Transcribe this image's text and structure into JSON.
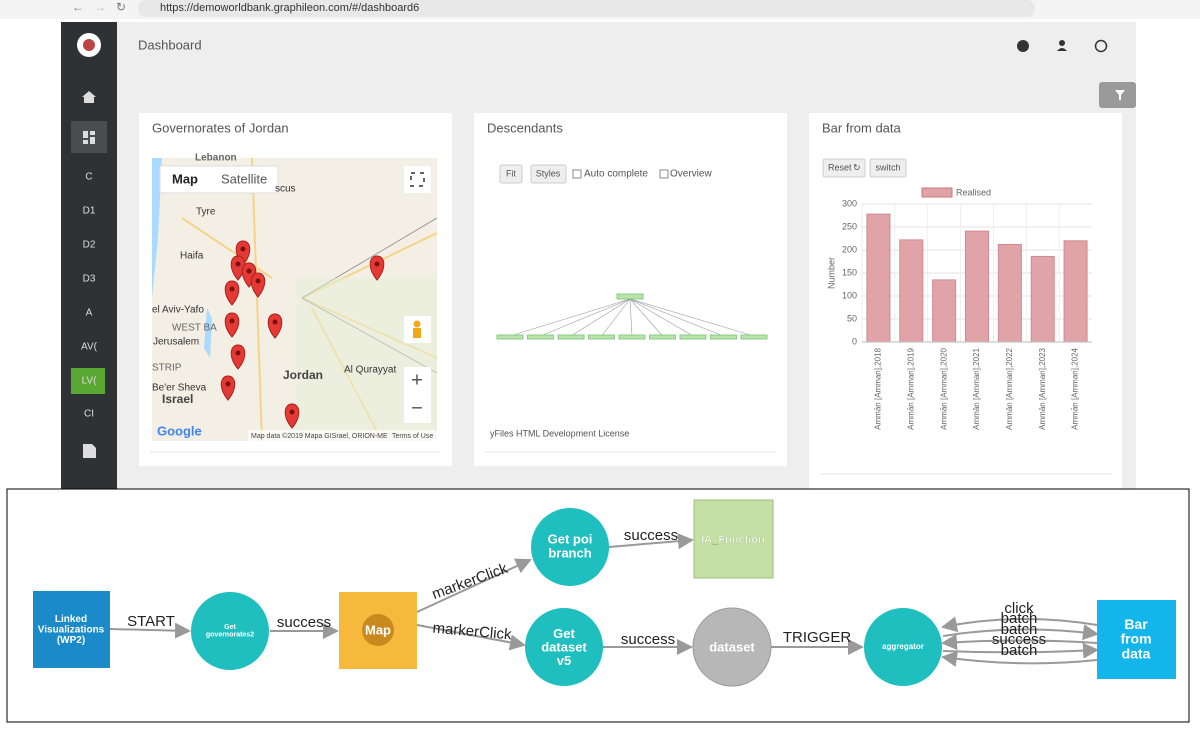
{
  "browser": {
    "url": "https://demoworldbank.graphileon.com/#/dashboard6"
  },
  "sidebar": {
    "items": [
      "C",
      "D1",
      "D2",
      "D3",
      "A",
      "AV(",
      "LV(",
      "CI"
    ]
  },
  "header": {
    "title": "Dashboard"
  },
  "map_panel": {
    "title": "Governorates of Jordan",
    "buttons": [
      "Map",
      "Satellite"
    ],
    "places": [
      "Tyre",
      "Haifa",
      "el Aviv-Yafo",
      "WEST BA",
      "Jerusalem",
      "STRIP",
      "Be'er Sheva",
      "Israel",
      "Jordan",
      "Al Qurayyat",
      "Lebanon",
      "scus"
    ],
    "logo": "Google",
    "attribution": "Map data ©2019 Mapa GISrael, ORION-ME",
    "terms": "Terms of Use"
  },
  "tree_panel": {
    "title": "Descendants",
    "buttons": [
      "Fit",
      "Styles"
    ],
    "checkboxes": [
      "Auto complete",
      "Overview"
    ],
    "license": "yFiles HTML Development License"
  },
  "bar_panel": {
    "title": "Bar from data",
    "buttons": [
      "Reset",
      "switch"
    ],
    "chart": {
      "type": "bar",
      "series_name": "Realised",
      "color": "#e0a3a8",
      "y_label": "Number",
      "categories": [
        "Ammān [Amman],2018",
        "Ammān [Amman],2019",
        "Ammān [Amman],2020",
        "Ammān [Amman],2021",
        "Ammān [Amman],2022",
        "Ammān [Amman],2023",
        "Ammān [Amman],2024"
      ],
      "values": [
        278,
        222,
        135,
        241,
        212,
        186,
        220
      ],
      "ylim": [
        0,
        300
      ],
      "yticks": [
        0,
        50,
        100,
        150,
        200,
        250,
        300
      ],
      "grid": true
    }
  },
  "flow": {
    "nodes": [
      {
        "label": [
          "Linked",
          "Visualizations",
          "(WP2)"
        ]
      },
      {
        "label": [
          "Get",
          "governorates2"
        ]
      },
      {
        "label": [
          "Map"
        ]
      },
      {
        "label": [
          "Get poi",
          "branch"
        ]
      },
      {
        "label": [
          "IA_Function"
        ]
      },
      {
        "label": [
          "Get",
          "dataset",
          "v5"
        ]
      },
      {
        "label": [
          "dataset"
        ]
      },
      {
        "label": [
          "aggregator"
        ]
      },
      {
        "label": [
          "Bar",
          "from",
          "data"
        ]
      }
    ],
    "edges": [
      "START",
      "success",
      "markerClick",
      "markerClick",
      "success",
      "success",
      "TRIGGER",
      "click",
      "batch",
      "batch",
      "success",
      "batch"
    ]
  }
}
